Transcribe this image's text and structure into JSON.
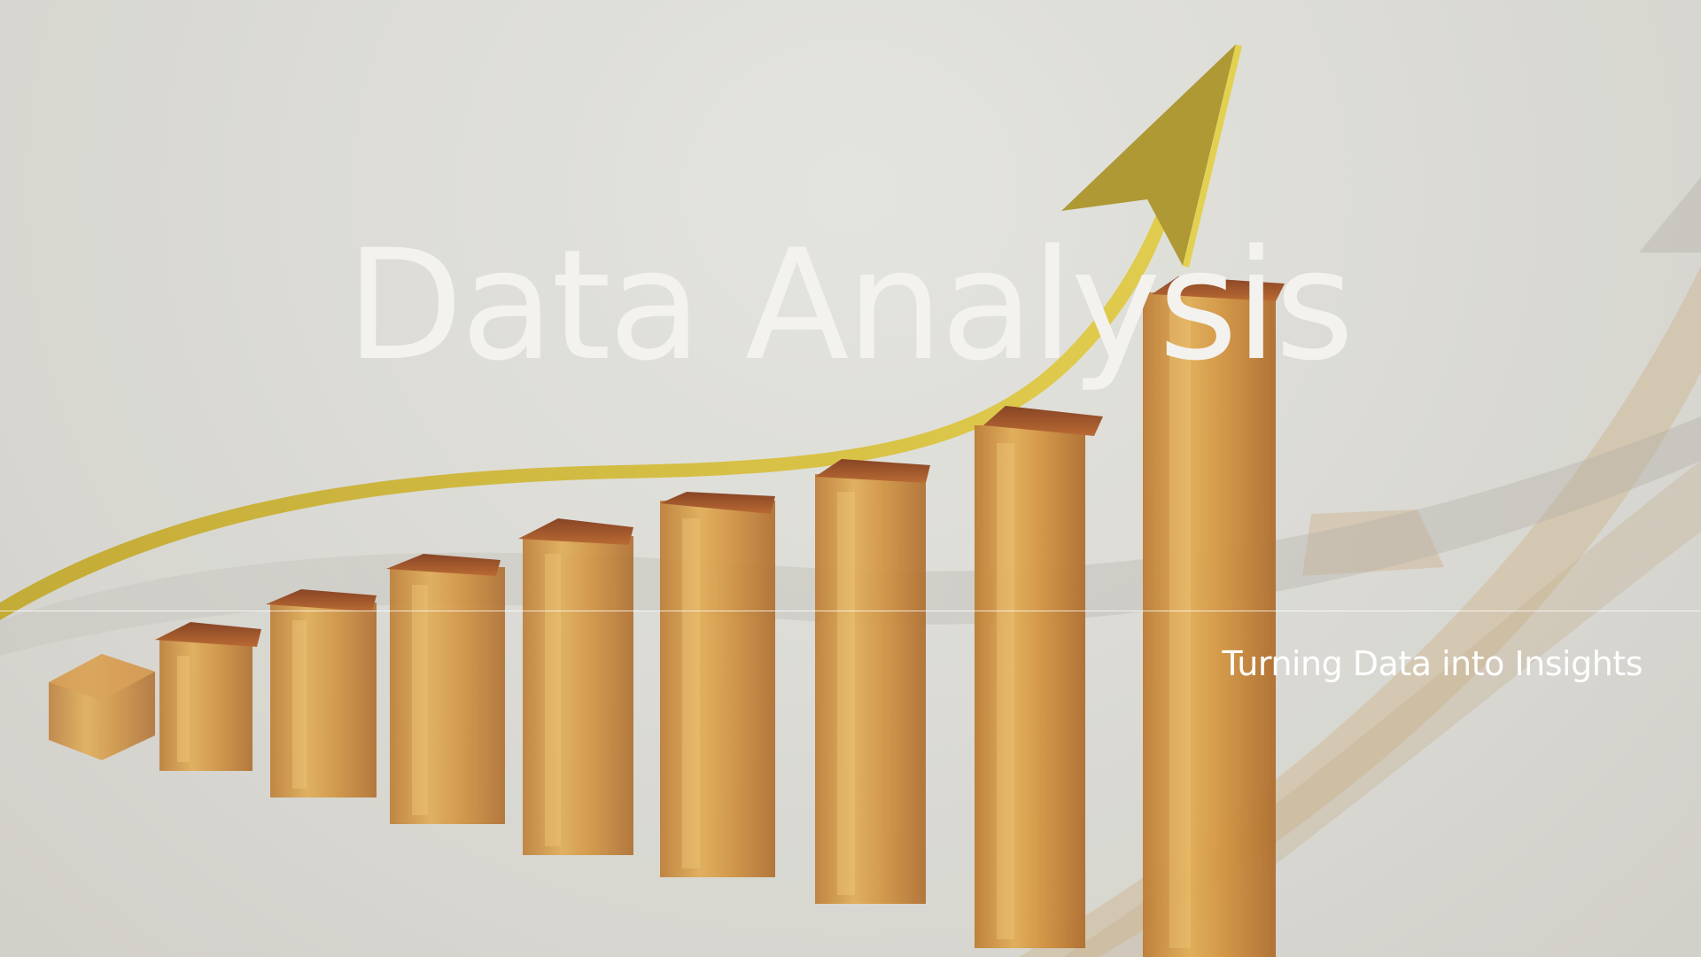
{
  "slide": {
    "title": "Data Analysis",
    "subtitle": "Turning Data into Insights"
  },
  "background": {
    "image_description_icon": "growth-bar-chart-with-arrow-icon",
    "bar_color": "#c8852a",
    "bar_top_color": "#8a3a12",
    "arrow_color": "#c9b224",
    "backdrop_color": "#d9d8d3"
  }
}
